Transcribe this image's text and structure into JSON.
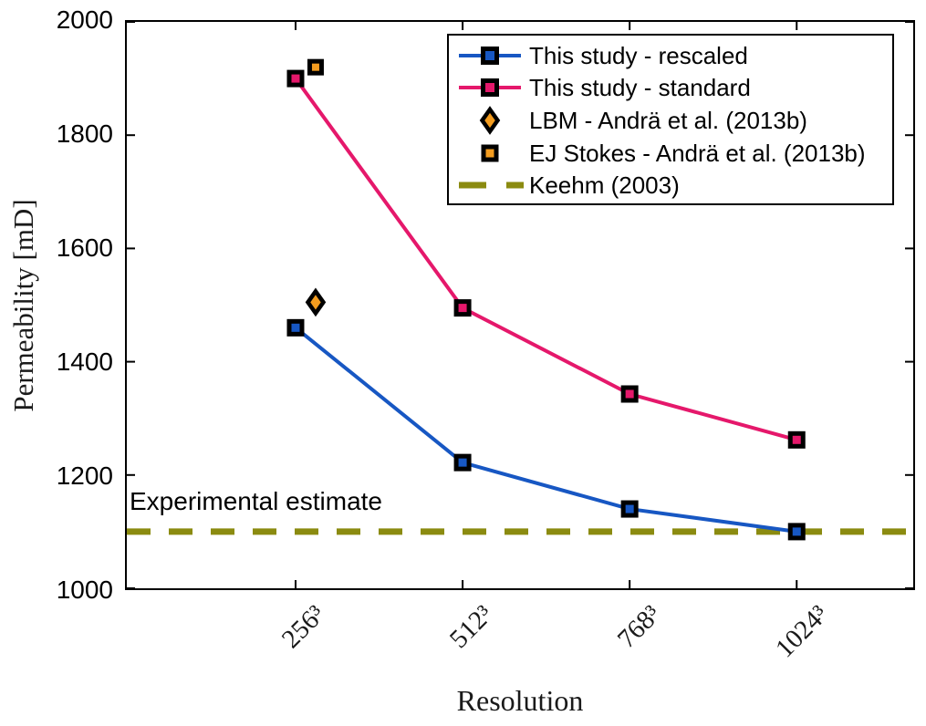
{
  "axes": {
    "ylabel": "Permeability [mD]",
    "xlabel": "Resolution",
    "y_ticks": [
      "2000",
      "1800",
      "1600",
      "1400",
      "1200",
      "1000"
    ],
    "x_ticks": [
      "256³",
      "512³",
      "768³",
      "1024³"
    ]
  },
  "annotation": {
    "text": "Experimental estimate"
  },
  "legend": {
    "position": "upper right",
    "items": [
      {
        "label": "This study - rescaled",
        "marker": "square",
        "line": "solid",
        "color": "#1757C3"
      },
      {
        "label": "This study - standard",
        "marker": "square",
        "line": "solid",
        "color": "#E5186B"
      },
      {
        "label": "LBM - Andrä et al. (2013b)",
        "marker": "diamond",
        "line": "none",
        "color": "#F39C1F"
      },
      {
        "label": "EJ Stokes - Andrä et al. (2013b)",
        "marker": "square",
        "line": "none",
        "color": "#F39C1F"
      },
      {
        "label": "Keehm (2003)",
        "marker": "none",
        "line": "dashed",
        "color": "#8B8B10"
      }
    ]
  },
  "chart_data": {
    "type": "line",
    "title": "",
    "xlabel": "Resolution",
    "ylabel": "Permeability [mD]",
    "categories": [
      "256³",
      "512³",
      "768³",
      "1024³"
    ],
    "ylim": [
      1000,
      2000
    ],
    "y_tick_values": [
      2000,
      1800,
      1600,
      1400,
      1200,
      1000
    ],
    "grid": false,
    "legend_position": "upper right",
    "series": [
      {
        "name": "Keehm (2003)",
        "type": "hline",
        "value": 1100,
        "color": "#8B8B10",
        "linestyle": "dashed",
        "annotation": "Experimental estimate"
      },
      {
        "name": "This study - standard",
        "type": "line",
        "color": "#E5186B",
        "marker": "square",
        "marker_edge": "#000000",
        "values": [
          1900,
          1495,
          1343,
          1262
        ]
      },
      {
        "name": "This study - rescaled",
        "type": "line",
        "color": "#1757C3",
        "marker": "square",
        "marker_edge": "#000000",
        "values": [
          1460,
          1222,
          1140,
          1100
        ]
      },
      {
        "name": "LBM - Andrä et al. (2013b)",
        "type": "scatter",
        "color": "#F39C1F",
        "marker": "diamond",
        "marker_edge": "#000000",
        "points": [
          {
            "category_index": 0,
            "x_offset_frac": 0.12,
            "value": 1505
          }
        ]
      },
      {
        "name": "EJ Stokes - Andrä et al. (2013b)",
        "type": "scatter",
        "color": "#F39C1F",
        "marker": "square",
        "marker_edge": "#000000",
        "points": [
          {
            "category_index": 0,
            "x_offset_frac": 0.12,
            "value": 1920
          }
        ]
      }
    ]
  }
}
